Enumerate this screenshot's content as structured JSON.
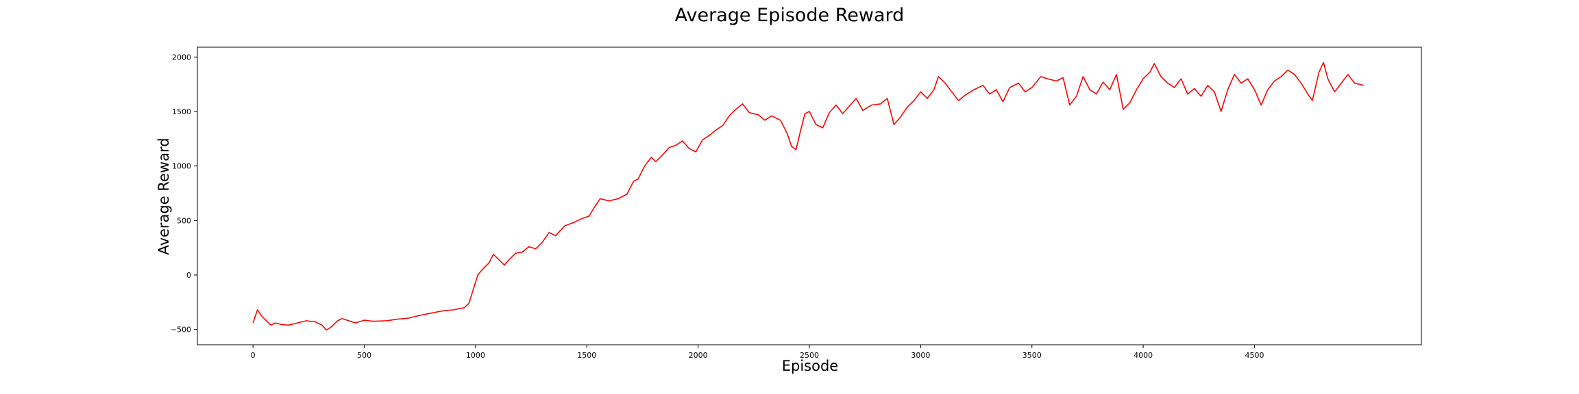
{
  "chart_data": {
    "type": "line",
    "title": "Average Episode Reward",
    "xlabel": "Episode",
    "ylabel": "Average Reward",
    "xlim": [
      -250,
      5250
    ],
    "ylim": [
      -640,
      2090
    ],
    "xticks": [
      0,
      500,
      1000,
      1500,
      2000,
      2500,
      3000,
      3500,
      4000,
      4500
    ],
    "yticks": [
      -500,
      0,
      500,
      1000,
      1500,
      2000
    ],
    "grid": false,
    "legend": "none",
    "series": [
      {
        "color": "#ff0000",
        "points": [
          [
            0,
            -440
          ],
          [
            20,
            -320
          ],
          [
            40,
            -380
          ],
          [
            60,
            -420
          ],
          [
            80,
            -460
          ],
          [
            100,
            -440
          ],
          [
            130,
            -455
          ],
          [
            160,
            -460
          ],
          [
            200,
            -440
          ],
          [
            240,
            -420
          ],
          [
            280,
            -430
          ],
          [
            310,
            -460
          ],
          [
            330,
            -505
          ],
          [
            350,
            -480
          ],
          [
            380,
            -420
          ],
          [
            400,
            -400
          ],
          [
            430,
            -420
          ],
          [
            460,
            -440
          ],
          [
            500,
            -415
          ],
          [
            540,
            -425
          ],
          [
            600,
            -420
          ],
          [
            650,
            -405
          ],
          [
            700,
            -395
          ],
          [
            750,
            -370
          ],
          [
            800,
            -350
          ],
          [
            850,
            -330
          ],
          [
            900,
            -320
          ],
          [
            950,
            -300
          ],
          [
            970,
            -260
          ],
          [
            990,
            -130
          ],
          [
            1010,
            0
          ],
          [
            1030,
            50
          ],
          [
            1060,
            110
          ],
          [
            1080,
            190
          ],
          [
            1100,
            150
          ],
          [
            1130,
            90
          ],
          [
            1150,
            140
          ],
          [
            1180,
            200
          ],
          [
            1210,
            210
          ],
          [
            1240,
            260
          ],
          [
            1270,
            240
          ],
          [
            1300,
            300
          ],
          [
            1330,
            390
          ],
          [
            1360,
            360
          ],
          [
            1400,
            450
          ],
          [
            1440,
            480
          ],
          [
            1480,
            520
          ],
          [
            1510,
            540
          ],
          [
            1540,
            640
          ],
          [
            1560,
            700
          ],
          [
            1600,
            680
          ],
          [
            1640,
            700
          ],
          [
            1680,
            740
          ],
          [
            1710,
            860
          ],
          [
            1730,
            880
          ],
          [
            1760,
            1000
          ],
          [
            1790,
            1080
          ],
          [
            1810,
            1040
          ],
          [
            1840,
            1100
          ],
          [
            1870,
            1170
          ],
          [
            1900,
            1190
          ],
          [
            1930,
            1230
          ],
          [
            1960,
            1160
          ],
          [
            1990,
            1130
          ],
          [
            2020,
            1240
          ],
          [
            2050,
            1280
          ],
          [
            2080,
            1330
          ],
          [
            2110,
            1370
          ],
          [
            2140,
            1460
          ],
          [
            2170,
            1520
          ],
          [
            2200,
            1570
          ],
          [
            2230,
            1490
          ],
          [
            2270,
            1470
          ],
          [
            2300,
            1420
          ],
          [
            2330,
            1460
          ],
          [
            2370,
            1420
          ],
          [
            2400,
            1300
          ],
          [
            2420,
            1180
          ],
          [
            2440,
            1150
          ],
          [
            2460,
            1320
          ],
          [
            2480,
            1480
          ],
          [
            2500,
            1500
          ],
          [
            2530,
            1380
          ],
          [
            2560,
            1350
          ],
          [
            2590,
            1490
          ],
          [
            2620,
            1560
          ],
          [
            2650,
            1480
          ],
          [
            2680,
            1550
          ],
          [
            2710,
            1620
          ],
          [
            2740,
            1510
          ],
          [
            2780,
            1560
          ],
          [
            2820,
            1570
          ],
          [
            2850,
            1620
          ],
          [
            2880,
            1380
          ],
          [
            2910,
            1450
          ],
          [
            2940,
            1540
          ],
          [
            2970,
            1600
          ],
          [
            3000,
            1680
          ],
          [
            3030,
            1620
          ],
          [
            3060,
            1700
          ],
          [
            3080,
            1820
          ],
          [
            3110,
            1760
          ],
          [
            3140,
            1680
          ],
          [
            3170,
            1600
          ],
          [
            3200,
            1650
          ],
          [
            3240,
            1700
          ],
          [
            3280,
            1740
          ],
          [
            3310,
            1660
          ],
          [
            3340,
            1700
          ],
          [
            3370,
            1590
          ],
          [
            3400,
            1720
          ],
          [
            3440,
            1760
          ],
          [
            3470,
            1680
          ],
          [
            3500,
            1720
          ],
          [
            3540,
            1820
          ],
          [
            3570,
            1800
          ],
          [
            3610,
            1780
          ],
          [
            3640,
            1810
          ],
          [
            3670,
            1560
          ],
          [
            3700,
            1640
          ],
          [
            3730,
            1820
          ],
          [
            3760,
            1700
          ],
          [
            3790,
            1660
          ],
          [
            3820,
            1770
          ],
          [
            3850,
            1700
          ],
          [
            3880,
            1840
          ],
          [
            3910,
            1520
          ],
          [
            3940,
            1580
          ],
          [
            3970,
            1700
          ],
          [
            4000,
            1800
          ],
          [
            4030,
            1860
          ],
          [
            4050,
            1940
          ],
          [
            4080,
            1820
          ],
          [
            4110,
            1760
          ],
          [
            4140,
            1720
          ],
          [
            4170,
            1800
          ],
          [
            4200,
            1660
          ],
          [
            4230,
            1710
          ],
          [
            4260,
            1640
          ],
          [
            4290,
            1740
          ],
          [
            4320,
            1680
          ],
          [
            4350,
            1500
          ],
          [
            4380,
            1700
          ],
          [
            4410,
            1840
          ],
          [
            4440,
            1760
          ],
          [
            4470,
            1800
          ],
          [
            4500,
            1700
          ],
          [
            4530,
            1560
          ],
          [
            4560,
            1700
          ],
          [
            4590,
            1780
          ],
          [
            4620,
            1820
          ],
          [
            4650,
            1880
          ],
          [
            4680,
            1840
          ],
          [
            4710,
            1760
          ],
          [
            4740,
            1660
          ],
          [
            4760,
            1600
          ],
          [
            4790,
            1860
          ],
          [
            4810,
            1950
          ],
          [
            4830,
            1800
          ],
          [
            4860,
            1680
          ],
          [
            4890,
            1760
          ],
          [
            4920,
            1840
          ],
          [
            4950,
            1760
          ],
          [
            4990,
            1740
          ]
        ]
      }
    ]
  }
}
